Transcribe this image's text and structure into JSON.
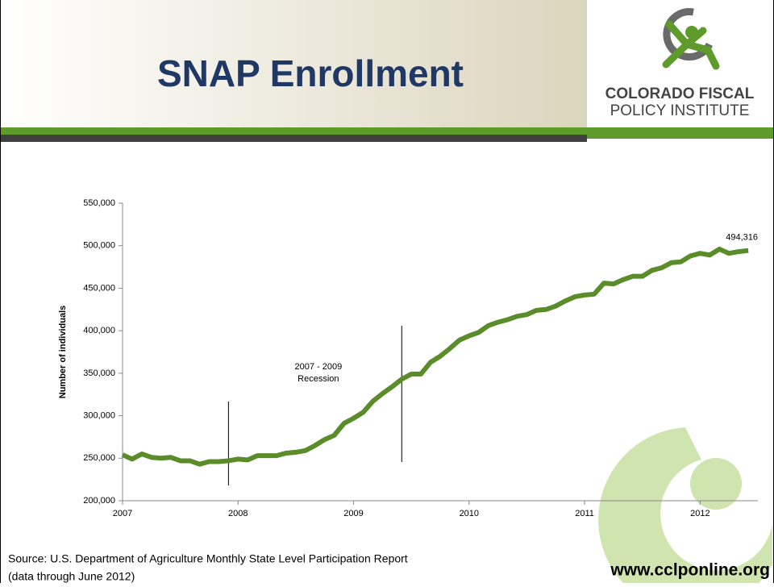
{
  "header": {
    "title": "SNAP  Enrollment",
    "logo_line1": "COLORADO FISCAL",
    "logo_line2": "POLICY INSTITUTE"
  },
  "chart_data": {
    "type": "line",
    "ylabel": "Number of individuals",
    "x": [
      2007.0,
      2007.083,
      2007.167,
      2007.25,
      2007.333,
      2007.417,
      2007.5,
      2007.583,
      2007.667,
      2007.75,
      2007.833,
      2007.917,
      2008.0,
      2008.083,
      2008.167,
      2008.25,
      2008.333,
      2008.417,
      2008.5,
      2008.583,
      2008.667,
      2008.75,
      2008.833,
      2008.917,
      2009.0,
      2009.083,
      2009.167,
      2009.25,
      2009.333,
      2009.417,
      2009.5,
      2009.583,
      2009.667,
      2009.75,
      2009.833,
      2009.917,
      2010.0,
      2010.083,
      2010.167,
      2010.25,
      2010.333,
      2010.417,
      2010.5,
      2010.583,
      2010.667,
      2010.75,
      2010.833,
      2010.917,
      2011.0,
      2011.083,
      2011.167,
      2011.25,
      2011.333,
      2011.417,
      2011.5,
      2011.583,
      2011.667,
      2011.75,
      2011.833,
      2011.917,
      2012.0,
      2012.083,
      2012.167,
      2012.25,
      2012.333,
      2012.417
    ],
    "series": [
      {
        "name": "SNAP enrollment",
        "color": "#5b8c2a",
        "values": [
          254000,
          249000,
          255000,
          251000,
          250000,
          251000,
          247000,
          247000,
          243000,
          246000,
          246000,
          247000,
          249000,
          248000,
          253000,
          253000,
          253000,
          256000,
          257000,
          259000,
          265000,
          272000,
          277000,
          291000,
          297000,
          304000,
          317000,
          326000,
          334000,
          343000,
          349000,
          349000,
          363000,
          370000,
          379000,
          389000,
          394000,
          398000,
          406000,
          410000,
          413000,
          417000,
          419000,
          424000,
          425000,
          429000,
          435000,
          440000,
          442000,
          443000,
          456000,
          455000,
          460000,
          464000,
          464000,
          471000,
          474000,
          480000,
          481000,
          488000,
          491000,
          489000,
          496000,
          491000,
          493000,
          494316
        ],
        "value_labels": [
          null,
          null,
          null,
          null,
          null,
          null,
          null,
          null,
          null,
          null,
          null,
          null,
          null,
          null,
          null,
          null,
          null,
          null,
          null,
          null,
          null,
          null,
          null,
          null,
          null,
          null,
          null,
          null,
          null,
          null,
          null,
          null,
          null,
          null,
          null,
          null,
          null,
          null,
          null,
          null,
          null,
          null,
          null,
          null,
          null,
          null,
          null,
          null,
          null,
          null,
          null,
          null,
          null,
          null,
          null,
          null,
          null,
          null,
          null,
          null,
          null,
          null,
          null,
          null,
          null,
          "494,316"
        ]
      }
    ],
    "xlim": [
      2007,
      2012.5
    ],
    "xticks": [
      2007,
      2008,
      2009,
      2010,
      2011,
      2012
    ],
    "ylim": [
      200000,
      550000
    ],
    "yticks": [
      {
        "value": 200000,
        "label": "200,000"
      },
      {
        "value": 250000,
        "label": "250,000"
      },
      {
        "value": 300000,
        "label": "300,000"
      },
      {
        "value": 350000,
        "label": "350,000"
      },
      {
        "value": 400000,
        "label": "400,000"
      },
      {
        "value": 450000,
        "label": "450,000"
      },
      {
        "value": 500000,
        "label": "500,000"
      },
      {
        "value": 550000,
        "label": "550,000"
      }
    ],
    "recession": {
      "label": [
        "2007 - 2009",
        "Recession"
      ],
      "start": 2007.917,
      "end": 2009.417
    }
  },
  "footer": {
    "source_line1": "Source: U.S. Department of Agriculture Monthly State Level Participation Report",
    "source_line2": "(data through June 2012)",
    "url": "www.cclponline.org"
  }
}
